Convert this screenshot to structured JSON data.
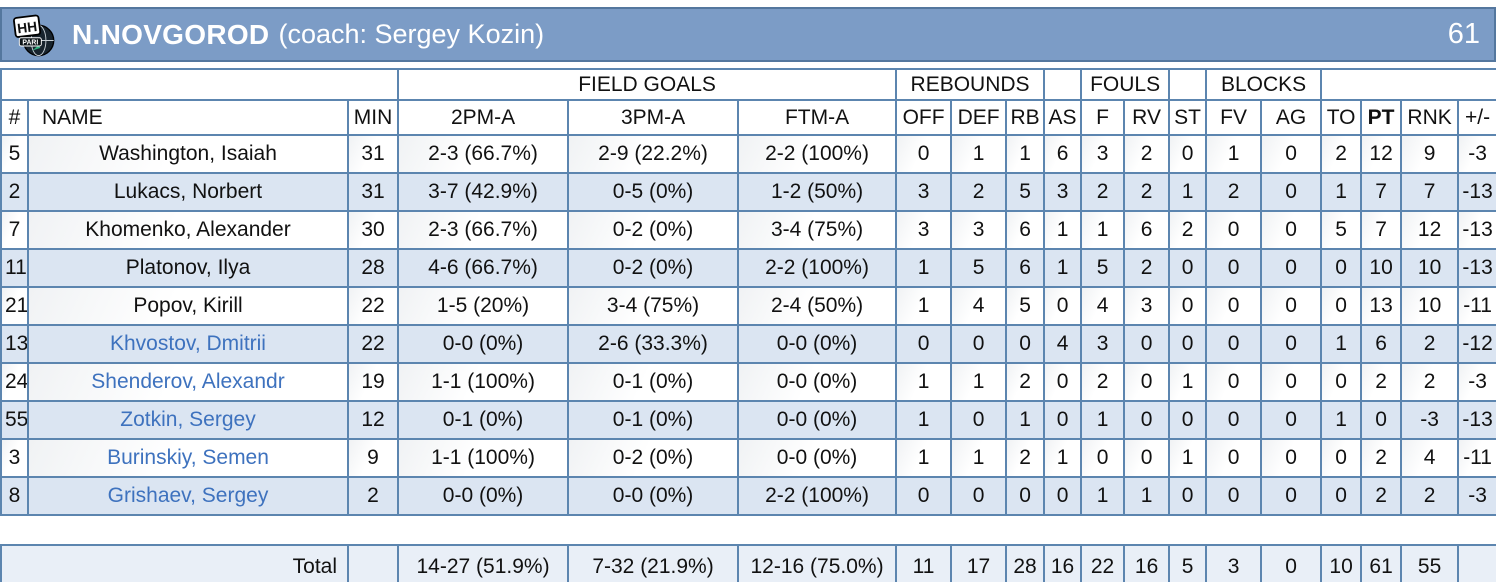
{
  "header": {
    "team": "N.NOVGOROD",
    "coach": "(coach: Sergey Kozin)",
    "score": "61",
    "logo_text_top": "HH",
    "logo_text_banner": "PARI"
  },
  "table": {
    "group_headers": {
      "field_goals": "FIELD GOALS",
      "rebounds": "REBOUNDS",
      "fouls": "FOULS",
      "blocks": "BLOCKS"
    },
    "columns": [
      "#",
      "NAME",
      "MIN",
      "2PM-A",
      "3PM-A",
      "FTM-A",
      "OFF",
      "DEF",
      "RB",
      "AS",
      "F",
      "RV",
      "ST",
      "FV",
      "AG",
      "TO",
      "PT",
      "RNK",
      "+/-"
    ],
    "players": [
      {
        "num": "5",
        "name": "Washington, Isaiah",
        "bold": true,
        "min": "31",
        "p2": "2-3 (66.7%)",
        "p3": "2-9 (22.2%)",
        "ft": "2-2 (100%)",
        "off": "0",
        "def": "1",
        "rb": "1",
        "as": "6",
        "f": "3",
        "rv": "2",
        "st": "0",
        "fv": "1",
        "ag": "0",
        "to": "2",
        "pt": "12",
        "rnk": "9",
        "pm": "-3"
      },
      {
        "num": "2",
        "name": "Lukacs, Norbert",
        "bold": true,
        "min": "31",
        "p2": "3-7 (42.9%)",
        "p3": "0-5 (0%)",
        "ft": "1-2 (50%)",
        "off": "3",
        "def": "2",
        "rb": "5",
        "as": "3",
        "f": "2",
        "rv": "2",
        "st": "1",
        "fv": "2",
        "ag": "0",
        "to": "1",
        "pt": "7",
        "rnk": "7",
        "pm": "-13"
      },
      {
        "num": "7",
        "name": "Khomenko, Alexander",
        "bold": true,
        "min": "30",
        "p2": "2-3 (66.7%)",
        "p3": "0-2 (0%)",
        "ft": "3-4 (75%)",
        "off": "3",
        "def": "3",
        "rb": "6",
        "as": "1",
        "f": "1",
        "rv": "6",
        "st": "2",
        "fv": "0",
        "ag": "0",
        "to": "5",
        "pt": "7",
        "rnk": "12",
        "pm": "-13"
      },
      {
        "num": "11",
        "name": "Platonov, Ilya",
        "bold": true,
        "min": "28",
        "p2": "4-6 (66.7%)",
        "p3": "0-2 (0%)",
        "ft": "2-2 (100%)",
        "off": "1",
        "def": "5",
        "rb": "6",
        "as": "1",
        "f": "5",
        "rv": "2",
        "st": "0",
        "fv": "0",
        "ag": "0",
        "to": "0",
        "pt": "10",
        "rnk": "10",
        "pm": "-13"
      },
      {
        "num": "21",
        "name": "Popov, Kirill",
        "bold": true,
        "min": "22",
        "p2": "1-5 (20%)",
        "p3": "3-4 (75%)",
        "ft": "2-4 (50%)",
        "off": "1",
        "def": "4",
        "rb": "5",
        "as": "0",
        "f": "4",
        "rv": "3",
        "st": "0",
        "fv": "0",
        "ag": "0",
        "to": "0",
        "pt": "13",
        "rnk": "10",
        "pm": "-11"
      },
      {
        "num": "13",
        "name": "Khvostov, Dmitrii",
        "bold": false,
        "min": "22",
        "p2": "0-0 (0%)",
        "p3": "2-6 (33.3%)",
        "ft": "0-0 (0%)",
        "off": "0",
        "def": "0",
        "rb": "0",
        "as": "4",
        "f": "3",
        "rv": "0",
        "st": "0",
        "fv": "0",
        "ag": "0",
        "to": "1",
        "pt": "6",
        "rnk": "2",
        "pm": "-12"
      },
      {
        "num": "24",
        "name": "Shenderov, Alexandr",
        "bold": false,
        "min": "19",
        "p2": "1-1 (100%)",
        "p3": "0-1 (0%)",
        "ft": "0-0 (0%)",
        "off": "1",
        "def": "1",
        "rb": "2",
        "as": "0",
        "f": "2",
        "rv": "0",
        "st": "1",
        "fv": "0",
        "ag": "0",
        "to": "0",
        "pt": "2",
        "rnk": "2",
        "pm": "-3"
      },
      {
        "num": "55",
        "name": "Zotkin, Sergey",
        "bold": false,
        "min": "12",
        "p2": "0-1 (0%)",
        "p3": "0-1 (0%)",
        "ft": "0-0 (0%)",
        "off": "1",
        "def": "0",
        "rb": "1",
        "as": "0",
        "f": "1",
        "rv": "0",
        "st": "0",
        "fv": "0",
        "ag": "0",
        "to": "1",
        "pt": "0",
        "rnk": "-3",
        "pm": "-13"
      },
      {
        "num": "3",
        "name": "Burinskiy, Semen",
        "bold": false,
        "min": "9",
        "p2": "1-1 (100%)",
        "p3": "0-2 (0%)",
        "ft": "0-0 (0%)",
        "off": "1",
        "def": "1",
        "rb": "2",
        "as": "1",
        "f": "0",
        "rv": "0",
        "st": "1",
        "fv": "0",
        "ag": "0",
        "to": "0",
        "pt": "2",
        "rnk": "4",
        "pm": "-11"
      },
      {
        "num": "8",
        "name": "Grishaev, Sergey",
        "bold": false,
        "min": "2",
        "p2": "0-0 (0%)",
        "p3": "0-0 (0%)",
        "ft": "2-2 (100%)",
        "off": "0",
        "def": "0",
        "rb": "0",
        "as": "0",
        "f": "1",
        "rv": "1",
        "st": "0",
        "fv": "0",
        "ag": "0",
        "to": "0",
        "pt": "2",
        "rnk": "2",
        "pm": "-3"
      }
    ],
    "total": {
      "label": "Total",
      "min": "",
      "p2": "14-27 (51.9%)",
      "p3": "7-32 (21.9%)",
      "ft": "12-16 (75.0%)",
      "off": "11",
      "def": "17",
      "rb": "28",
      "as": "16",
      "f": "22",
      "rv": "16",
      "st": "5",
      "fv": "3",
      "ag": "0",
      "to": "10",
      "pt": "61",
      "rnk": "55",
      "pm": ""
    }
  },
  "colors": {
    "titlebar_bg": "#7c9cc6",
    "titlebar_border": "#54779e",
    "grid_line": "#5c85af",
    "row_alt": "#dbe5f2",
    "total_bg": "#e9eff7",
    "name_link": "#2a5fb4",
    "name_link_light": "#3e72be",
    "logo_green": "#2fae7d"
  }
}
